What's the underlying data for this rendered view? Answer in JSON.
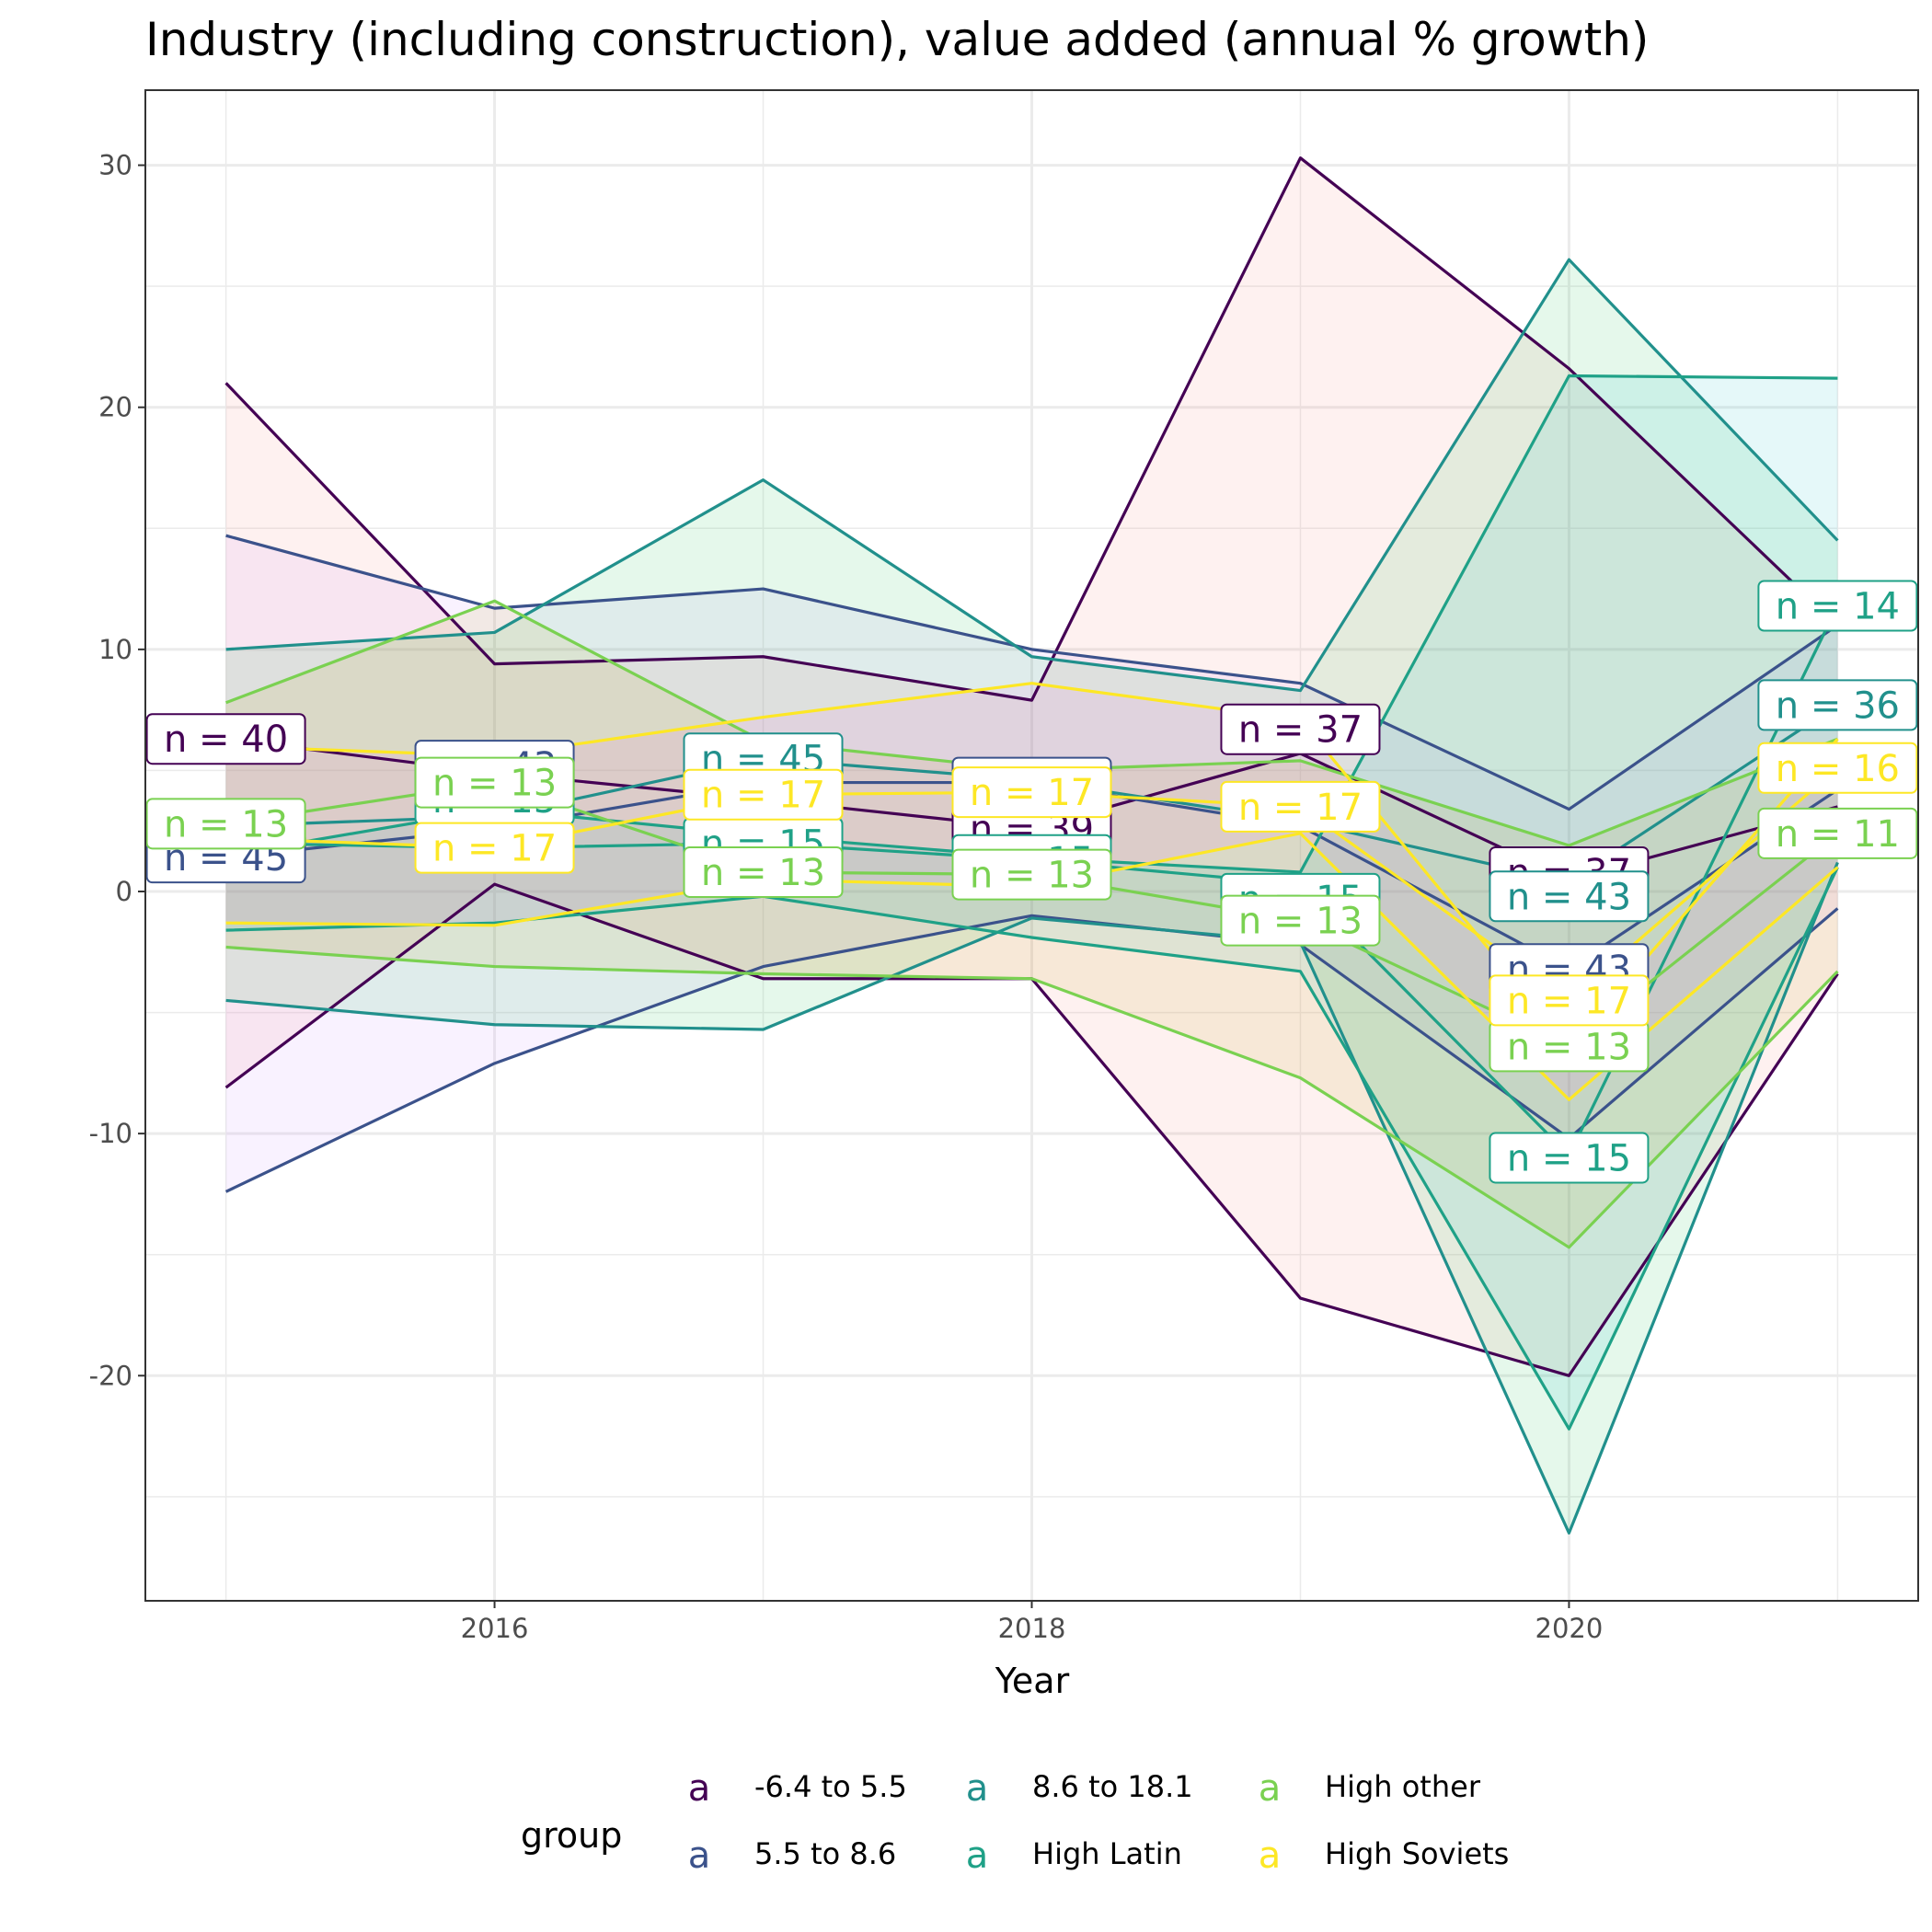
{
  "chart_data": {
    "type": "line",
    "title": "Industry (including construction), value added (annual % growth)",
    "xlabel": "Year",
    "ylabel": "",
    "xlim": [
      2014.7,
      2021.3
    ],
    "ylim": [
      -29.3,
      33.1
    ],
    "x_ticks": [
      2016,
      2018,
      2020
    ],
    "x_tick_labels": [
      "2016",
      "2018",
      "2020"
    ],
    "y_ticks": [
      -20,
      -10,
      0,
      10,
      20,
      30
    ],
    "y_tick_labels": [
      "-20",
      "-10",
      "0",
      "10",
      "20",
      "30"
    ],
    "x": [
      2015,
      2016,
      2017,
      2018,
      2019,
      2020,
      2021
    ],
    "legend": {
      "title": "group",
      "key_glyph": "a",
      "position": "bottom"
    },
    "series": [
      {
        "name": "-6.4 to 5.5",
        "color": "#440154",
        "fill": "#F8766D",
        "max": [
          21,
          9.4,
          9.7,
          7.9,
          30.3,
          21.6,
          11
        ],
        "mean": [
          6.3,
          4.9,
          3.8,
          2.6,
          5.7,
          0.5,
          3.5
        ],
        "min": [
          -8.1,
          0.3,
          -3.6,
          -3.6,
          -16.8,
          -20,
          -3.4
        ],
        "n_labels": [
          {
            "x": 2015,
            "y": 6.3,
            "text": "n = 40"
          },
          {
            "x": 2018,
            "y": 2.6,
            "text": "n = 39"
          },
          {
            "x": 2019,
            "y": 6.7,
            "text": "n = 37"
          },
          {
            "x": 2020,
            "y": 0.8,
            "text": "n = 37"
          }
        ]
      },
      {
        "name": "5.5 to 8.6",
        "color": "#3B528B",
        "fill": "#C77CFF",
        "max": [
          14.7,
          11.7,
          12.5,
          10,
          8.6,
          3.4,
          11
        ],
        "mean": [
          1.4,
          2.6,
          4.5,
          4.5,
          2.7,
          -3.2,
          4.2
        ],
        "min": [
          -12.4,
          -7.1,
          -3.1,
          -1,
          -2.2,
          -10.2,
          -0.7
        ],
        "n_labels": [
          {
            "x": 2015,
            "y": 1.4,
            "text": "n = 45"
          },
          {
            "x": 2016,
            "y": 5.2,
            "text": "n = 43"
          },
          {
            "x": 2018,
            "y": 4.5,
            "text": "n = 44"
          },
          {
            "x": 2020,
            "y": -3.2,
            "text": "n = 43"
          }
        ]
      },
      {
        "name": "8.6 to 18.1",
        "color": "#21908C",
        "fill": "#00BA38",
        "max": [
          10,
          10.7,
          17,
          9.7,
          8.3,
          26.1,
          14.5
        ],
        "mean": [
          2.7,
          3.1,
          5.5,
          4.6,
          2.9,
          0.4,
          7.7
        ],
        "min": [
          -4.5,
          -5.5,
          -5.7,
          -1.1,
          -2.1,
          -26.5,
          1.2
        ],
        "n_labels": [
          {
            "x": 2017,
            "y": 5.5,
            "text": "n = 45"
          },
          {
            "x": 2020,
            "y": -0.2,
            "text": "n = 43"
          },
          {
            "x": 2021,
            "y": 7.7,
            "text": "n = 36"
          }
        ]
      },
      {
        "name": "High Latin",
        "color": "#1FA187",
        "fill": "#00BFC4",
        "max": [
          1.5,
          3.4,
          2.3,
          1.4,
          0.8,
          21.3,
          21.2
        ],
        "mean": [
          2,
          1.8,
          2,
          1.3,
          0.3,
          -10.9,
          11.8
        ],
        "min": [
          -1.6,
          -1.3,
          -0.2,
          -1.9,
          -3.3,
          -22.2,
          1
        ],
        "n_labels": [
          {
            "x": 2016,
            "y": 3.8,
            "text": "n = 15"
          },
          {
            "x": 2017,
            "y": 2.0,
            "text": "n = 15"
          },
          {
            "x": 2018,
            "y": 1.3,
            "text": "n = 15"
          },
          {
            "x": 2019,
            "y": -0.3,
            "text": "n = 15"
          },
          {
            "x": 2020,
            "y": -11,
            "text": "n = 15"
          },
          {
            "x": 2021,
            "y": 11.8,
            "text": "n = 14"
          }
        ]
      },
      {
        "name": "High other",
        "color": "#7AD151",
        "fill": "#B79F00",
        "max": [
          7.8,
          12,
          6.2,
          5,
          5.4,
          1.9,
          6.3
        ],
        "mean": [
          2.8,
          4.5,
          0.8,
          0.7,
          -1.2,
          -6.4,
          2.4
        ],
        "min": [
          -2.3,
          -3.1,
          -3.4,
          -3.6,
          -7.7,
          -14.7,
          -3.3
        ],
        "n_labels": [
          {
            "x": 2015,
            "y": 2.8,
            "text": "n = 13"
          },
          {
            "x": 2016,
            "y": 4.5,
            "text": "n = 13"
          },
          {
            "x": 2017,
            "y": 0.8,
            "text": "n = 13"
          },
          {
            "x": 2018,
            "y": 0.7,
            "text": "n = 13"
          },
          {
            "x": 2019,
            "y": -1.2,
            "text": "n = 13"
          },
          {
            "x": 2020,
            "y": -6.4,
            "text": "n = 13"
          },
          {
            "x": 2021,
            "y": 2.4,
            "text": "n = 11"
          }
        ]
      },
      {
        "name": "High Soviets",
        "color": "#FDE725",
        "fill": "#F564E3",
        "max": [
          6,
          5.6,
          7.2,
          8.6,
          7.1,
          -6.4,
          6.3
        ],
        "mean": [
          2.2,
          1.8,
          4,
          4.1,
          3.5,
          -4.5,
          5.1
        ],
        "min": [
          -1.3,
          -1.4,
          0.5,
          0.2,
          2.4,
          -8.6,
          1
        ],
        "n_labels": [
          {
            "x": 2016,
            "y": 1.8,
            "text": "n = 17"
          },
          {
            "x": 2017,
            "y": 4.0,
            "text": "n = 17"
          },
          {
            "x": 2018,
            "y": 4.1,
            "text": "n = 17"
          },
          {
            "x": 2019,
            "y": 3.5,
            "text": "n = 17"
          },
          {
            "x": 2020,
            "y": -4.5,
            "text": "n = 17"
          },
          {
            "x": 2021,
            "y": 5.1,
            "text": "n = 16"
          }
        ]
      }
    ]
  }
}
